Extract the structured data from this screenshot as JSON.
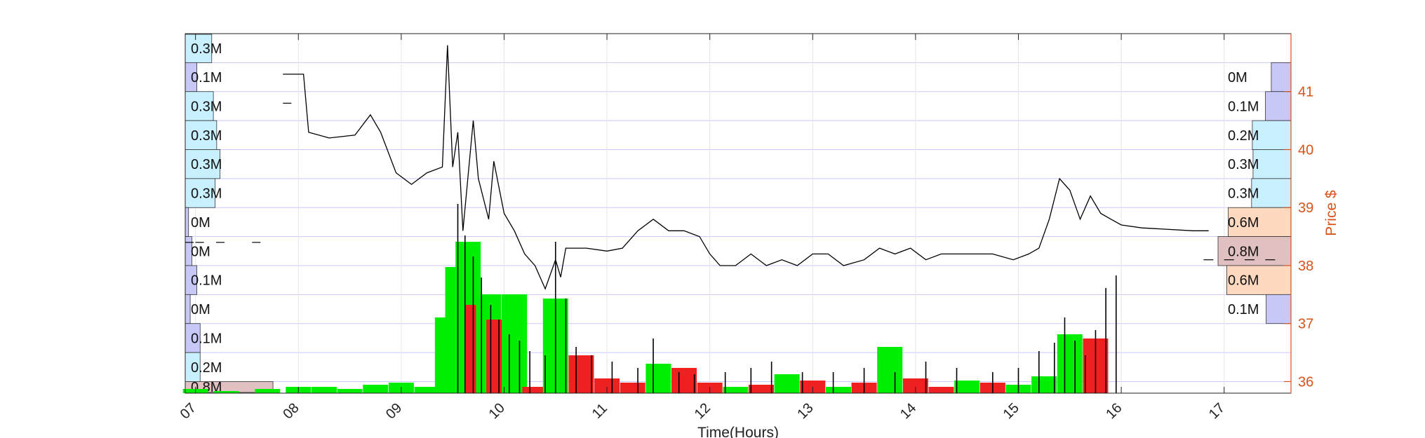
{
  "chart_data": {
    "type": "candlestick",
    "title": "",
    "xlabel": "Time(Hours)",
    "ylabel": "Price $",
    "x_ticks": [
      "07",
      "08",
      "09",
      "10",
      "11",
      "12",
      "13",
      "14",
      "15",
      "16",
      "17"
    ],
    "x_range_hours": [
      6.9,
      17.65
    ],
    "ylim": [
      35.8,
      42.0
    ],
    "y_ticks": [
      "36",
      "37",
      "38",
      "39",
      "40",
      "41"
    ],
    "price_bins": [
      {
        "low": 41.5,
        "high": 42.0,
        "left_volume": "0.3M",
        "right_volume": ""
      },
      {
        "low": 41.0,
        "high": 41.5,
        "left_volume": "0.1M",
        "right_volume": "0M"
      },
      {
        "low": 40.5,
        "high": 41.0,
        "left_volume": "0.3M",
        "right_volume": "0.1M"
      },
      {
        "low": 40.0,
        "high": 40.5,
        "left_volume": "0.3M",
        "right_volume": "0.2M"
      },
      {
        "low": 39.5,
        "high": 40.0,
        "left_volume": "0.3M",
        "right_volume": "0.3M"
      },
      {
        "low": 39.0,
        "high": 39.5,
        "left_volume": "0.3M",
        "right_volume": "0.3M"
      },
      {
        "low": 38.5,
        "high": 39.0,
        "left_volume": "0M",
        "right_volume": "0.6M"
      },
      {
        "low": 38.0,
        "high": 38.5,
        "left_volume": "0M",
        "right_volume": "0.8M"
      },
      {
        "low": 37.5,
        "high": 38.0,
        "left_volume": "0.1M",
        "right_volume": "0.6M"
      },
      {
        "low": 37.0,
        "high": 37.5,
        "left_volume": "0M",
        "right_volume": "0.1M"
      },
      {
        "low": 36.5,
        "high": 37.0,
        "left_volume": "0.1M",
        "right_volume": ""
      },
      {
        "low": 36.0,
        "high": 36.5,
        "left_volume": "0.2M",
        "right_volume": ""
      },
      {
        "low": 35.5,
        "high": 36.0,
        "left_volume": "0.8M",
        "right_volume": ""
      }
    ],
    "left_profile_fraction": [
      0.16,
      0.07,
      0.17,
      0.19,
      0.21,
      0.18,
      0.02,
      0.04,
      0.07,
      0.03,
      0.09,
      0.09,
      0.53
    ],
    "right_profile_fraction": [
      0,
      0.27,
      0.35,
      0.53,
      0.52,
      0.54,
      0.86,
      1.0,
      0.88,
      0.34,
      0,
      0,
      0
    ],
    "price_path": [
      [
        7.85,
        41.3
      ],
      [
        8.05,
        41.3
      ],
      [
        8.1,
        40.3
      ],
      [
        8.3,
        40.2
      ],
      [
        8.55,
        40.25
      ],
      [
        8.7,
        40.6
      ],
      [
        8.8,
        40.3
      ],
      [
        8.95,
        39.6
      ],
      [
        9.1,
        39.4
      ],
      [
        9.25,
        39.6
      ],
      [
        9.4,
        39.7
      ],
      [
        9.45,
        41.8
      ],
      [
        9.5,
        39.7
      ],
      [
        9.55,
        40.3
      ],
      [
        9.6,
        38.6
      ],
      [
        9.7,
        40.5
      ],
      [
        9.75,
        39.5
      ],
      [
        9.85,
        38.8
      ],
      [
        9.9,
        39.8
      ],
      [
        10.0,
        38.9
      ],
      [
        10.1,
        38.6
      ],
      [
        10.2,
        38.2
      ],
      [
        10.3,
        38.0
      ],
      [
        10.4,
        37.6
      ],
      [
        10.5,
        38.1
      ],
      [
        10.55,
        37.8
      ],
      [
        10.6,
        38.3
      ],
      [
        10.8,
        38.3
      ],
      [
        11.0,
        38.25
      ],
      [
        11.15,
        38.3
      ],
      [
        11.3,
        38.6
      ],
      [
        11.45,
        38.8
      ],
      [
        11.6,
        38.6
      ],
      [
        11.75,
        38.6
      ],
      [
        11.9,
        38.5
      ],
      [
        12.0,
        38.2
      ],
      [
        12.1,
        38.0
      ],
      [
        12.25,
        38.0
      ],
      [
        12.4,
        38.2
      ],
      [
        12.55,
        38.0
      ],
      [
        12.7,
        38.1
      ],
      [
        12.85,
        38.0
      ],
      [
        13.0,
        38.2
      ],
      [
        13.15,
        38.2
      ],
      [
        13.3,
        38.0
      ],
      [
        13.5,
        38.1
      ],
      [
        13.65,
        38.3
      ],
      [
        13.8,
        38.2
      ],
      [
        13.95,
        38.3
      ],
      [
        14.1,
        38.1
      ],
      [
        14.25,
        38.2
      ],
      [
        14.4,
        38.2
      ],
      [
        14.55,
        38.2
      ],
      [
        14.75,
        38.2
      ],
      [
        14.95,
        38.1
      ],
      [
        15.1,
        38.2
      ],
      [
        15.2,
        38.3
      ],
      [
        15.3,
        38.8
      ],
      [
        15.4,
        39.5
      ],
      [
        15.5,
        39.3
      ],
      [
        15.6,
        38.8
      ],
      [
        15.7,
        39.2
      ],
      [
        15.8,
        38.9
      ],
      [
        15.9,
        38.8
      ],
      [
        16.0,
        38.7
      ],
      [
        16.2,
        38.65
      ],
      [
        16.7,
        38.6
      ],
      [
        16.85,
        38.6
      ]
    ],
    "pre_market_marks": [
      [
        6.9,
        38.4
      ],
      [
        7.0,
        38.4
      ],
      [
        7.2,
        38.4
      ],
      [
        7.55,
        38.4
      ],
      [
        7.85,
        40.8
      ]
    ],
    "post_market_marks": [
      [
        16.8,
        38.1
      ],
      [
        17.0,
        38.1
      ],
      [
        17.2,
        38.1
      ],
      [
        17.4,
        38.1
      ]
    ],
    "volume_block_fraction": [
      [
        7.0,
        0.02,
        "up"
      ],
      [
        7.3,
        0.01,
        "up"
      ],
      [
        7.7,
        0.02,
        "up"
      ],
      [
        8.0,
        0.03,
        "up"
      ],
      [
        8.25,
        0.03,
        "up"
      ],
      [
        8.5,
        0.02,
        "up"
      ],
      [
        8.75,
        0.04,
        "up"
      ],
      [
        9.0,
        0.05,
        "up"
      ],
      [
        9.25,
        0.03,
        "up"
      ],
      [
        9.45,
        0.36,
        "up"
      ],
      [
        9.55,
        0.6,
        "up"
      ],
      [
        9.65,
        0.72,
        "up"
      ],
      [
        9.75,
        0.42,
        "down"
      ],
      [
        9.85,
        0.47,
        "up"
      ],
      [
        9.95,
        0.35,
        "down"
      ],
      [
        10.1,
        0.47,
        "up"
      ],
      [
        10.3,
        0.03,
        "down"
      ],
      [
        10.5,
        0.45,
        "up"
      ],
      [
        10.75,
        0.18,
        "down"
      ],
      [
        11.0,
        0.07,
        "down"
      ],
      [
        11.25,
        0.05,
        "down"
      ],
      [
        11.5,
        0.14,
        "up"
      ],
      [
        11.75,
        0.12,
        "down"
      ],
      [
        12.0,
        0.05,
        "down"
      ],
      [
        12.25,
        0.03,
        "up"
      ],
      [
        12.5,
        0.04,
        "down"
      ],
      [
        12.75,
        0.09,
        "up"
      ],
      [
        13.0,
        0.06,
        "down"
      ],
      [
        13.25,
        0.03,
        "up"
      ],
      [
        13.5,
        0.05,
        "down"
      ],
      [
        13.75,
        0.22,
        "up"
      ],
      [
        14.0,
        0.07,
        "down"
      ],
      [
        14.25,
        0.03,
        "down"
      ],
      [
        14.5,
        0.06,
        "up"
      ],
      [
        14.75,
        0.05,
        "down"
      ],
      [
        15.0,
        0.04,
        "up"
      ],
      [
        15.25,
        0.08,
        "up"
      ],
      [
        15.5,
        0.28,
        "up"
      ],
      [
        15.75,
        0.26,
        "down"
      ]
    ],
    "volume_spikes_fraction": [
      [
        9.55,
        0.9
      ],
      [
        9.62,
        0.75
      ],
      [
        9.7,
        0.65
      ],
      [
        9.78,
        0.55
      ],
      [
        9.87,
        0.42
      ],
      [
        9.95,
        0.35
      ],
      [
        10.05,
        0.28
      ],
      [
        10.15,
        0.25
      ],
      [
        10.25,
        0.2
      ],
      [
        10.4,
        0.18
      ],
      [
        10.5,
        0.72
      ],
      [
        10.6,
        0.45
      ],
      [
        10.7,
        0.22
      ],
      [
        10.85,
        0.18
      ],
      [
        11.05,
        0.15
      ],
      [
        11.3,
        0.12
      ],
      [
        11.45,
        0.26
      ],
      [
        11.7,
        0.1
      ],
      [
        11.85,
        0.09
      ],
      [
        12.15,
        0.1
      ],
      [
        12.4,
        0.12
      ],
      [
        12.6,
        0.15
      ],
      [
        12.9,
        0.1
      ],
      [
        13.2,
        0.1
      ],
      [
        13.5,
        0.12
      ],
      [
        13.8,
        0.1
      ],
      [
        14.1,
        0.15
      ],
      [
        14.4,
        0.12
      ],
      [
        14.75,
        0.1
      ],
      [
        15.0,
        0.12
      ],
      [
        15.2,
        0.2
      ],
      [
        15.35,
        0.24
      ],
      [
        15.45,
        0.36
      ],
      [
        15.55,
        0.25
      ],
      [
        15.65,
        0.18
      ],
      [
        15.75,
        0.3
      ],
      [
        15.85,
        0.5
      ],
      [
        15.95,
        0.56
      ]
    ],
    "colors": {
      "price": "#000000",
      "up_volume": "#00ee00",
      "down_volume": "#ee2020",
      "grid": "#c8c8ff",
      "right_axis": "#d95319",
      "profile_low": "#c8c8f8",
      "profile_mid": "#c8f0ff",
      "profile_high": "#ffd8c0",
      "profile_max": "#e0c0c0"
    },
    "grid": true,
    "legend": "none"
  }
}
